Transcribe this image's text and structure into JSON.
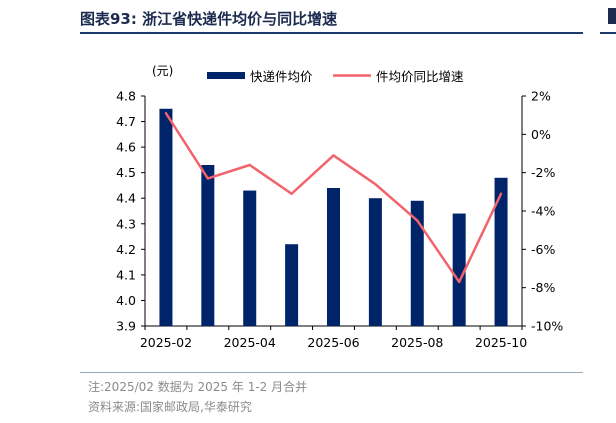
{
  "header": {
    "title": "图表93:  浙江省快递件均价与同比增速"
  },
  "footer": {
    "note": "注:2025/02 数据为 2025 年 1-2 月合并",
    "source": "资料来源:国家邮政局,华泰研究"
  },
  "colors": {
    "bar": "#002469",
    "line": "#f2636b",
    "accent": "#1f3b6e"
  },
  "chart_data": {
    "type": "bar",
    "left_unit_label": "(元)",
    "legend_position": "top",
    "x_tick_labels": [
      "2025-02",
      "2025-04",
      "2025-06",
      "2025-08",
      "2025-10"
    ],
    "left_axis": {
      "ylim": [
        3.9,
        4.8
      ],
      "ticks": [
        "4.8",
        "4.7",
        "4.6",
        "4.5",
        "4.4",
        "4.3",
        "4.2",
        "4.1",
        "4.0",
        "3.9"
      ]
    },
    "right_axis": {
      "ylim": [
        -10,
        2
      ],
      "ticks": [
        "2%",
        "0%",
        "-2%",
        "-4%",
        "-6%",
        "-8%",
        "-10%"
      ]
    },
    "categories": [
      "2025-02",
      "2025-03",
      "2025-04",
      "2025-05",
      "2025-06",
      "2025-07",
      "2025-08",
      "2025-09",
      "2025-10"
    ],
    "series": [
      {
        "name": "快递件均价",
        "type": "bar",
        "axis": "left",
        "values": [
          4.75,
          4.53,
          4.43,
          4.22,
          4.44,
          4.4,
          4.39,
          4.34,
          4.48
        ]
      },
      {
        "name": "件均价同比增速",
        "type": "line",
        "axis": "right",
        "values": [
          1.1,
          -2.3,
          -1.6,
          -3.1,
          -1.1,
          -2.6,
          -4.5,
          -7.7,
          -3.1
        ]
      }
    ],
    "grid": false
  }
}
